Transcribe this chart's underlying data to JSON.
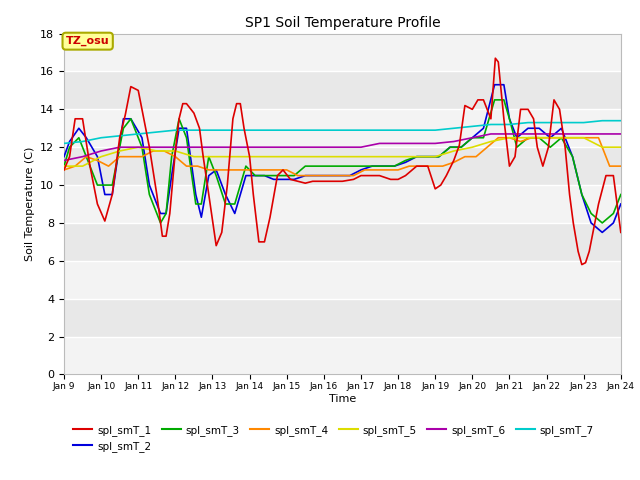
{
  "title": "SP1 Soil Temperature Profile",
  "xlabel": "Time",
  "ylabel": "Soil Temperature (C)",
  "ylim": [
    0,
    18
  ],
  "yticks": [
    0,
    2,
    4,
    6,
    8,
    10,
    12,
    14,
    16,
    18
  ],
  "tz_label": "TZ_osu",
  "xtick_labels": [
    "Jan 9",
    "Jan 10",
    "Jan 11",
    "Jan 12",
    "Jan 13",
    "Jan 14",
    "Jan 15",
    "Jan 16",
    "Jan 17",
    "Jan 18",
    "Jan 19",
    "Jan 20",
    "Jan 21",
    "Jan 22",
    "Jan 23",
    "Jan 24"
  ],
  "series_names": [
    "spl_smT_1",
    "spl_smT_2",
    "spl_smT_3",
    "spl_smT_4",
    "spl_smT_5",
    "spl_smT_6",
    "spl_smT_7"
  ],
  "series_colors": [
    "#dd0000",
    "#0000dd",
    "#00aa00",
    "#ff8800",
    "#dddd00",
    "#aa00aa",
    "#00cccc"
  ],
  "background_color": "#ffffff",
  "plot_bg_color": "#e8e8e8",
  "grid_color": "#ffffff",
  "spl_smT_1_x": [
    9.0,
    9.15,
    9.3,
    9.5,
    9.7,
    9.9,
    10.1,
    10.3,
    10.5,
    10.65,
    10.8,
    11.0,
    11.15,
    11.3,
    11.5,
    11.65,
    11.75,
    11.85,
    12.0,
    12.1,
    12.2,
    12.3,
    12.5,
    12.65,
    12.75,
    12.9,
    13.1,
    13.25,
    13.4,
    13.55,
    13.65,
    13.75,
    13.85,
    14.0,
    14.1,
    14.25,
    14.4,
    14.55,
    14.75,
    14.9,
    15.1,
    15.3,
    15.5,
    15.7,
    16.0,
    16.2,
    16.5,
    16.8,
    17.0,
    17.2,
    17.5,
    17.8,
    18.0,
    18.2,
    18.5,
    18.8,
    19.0,
    19.15,
    19.3,
    19.5,
    19.65,
    19.8,
    20.0,
    20.15,
    20.3,
    20.5,
    20.62,
    20.7,
    20.85,
    21.0,
    21.15,
    21.3,
    21.5,
    21.65,
    21.75,
    21.9,
    22.05,
    22.2,
    22.35,
    22.5,
    22.62,
    22.72,
    22.85,
    22.95,
    23.05,
    23.15,
    23.25,
    23.4,
    23.6,
    23.8,
    24.0
  ],
  "spl_smT_1_y": [
    10.8,
    11.5,
    13.5,
    13.5,
    11.0,
    9.0,
    8.1,
    9.5,
    12.5,
    13.7,
    15.2,
    15.0,
    13.5,
    12.0,
    9.5,
    7.3,
    7.3,
    8.5,
    11.8,
    13.5,
    14.3,
    14.3,
    13.8,
    13.0,
    11.5,
    9.5,
    6.8,
    7.5,
    10.0,
    13.5,
    14.3,
    14.3,
    13.0,
    11.5,
    9.5,
    7.0,
    7.0,
    8.3,
    10.5,
    10.8,
    10.3,
    10.2,
    10.1,
    10.2,
    10.2,
    10.2,
    10.2,
    10.3,
    10.5,
    10.5,
    10.5,
    10.3,
    10.3,
    10.5,
    11.0,
    11.0,
    9.8,
    10.0,
    10.5,
    11.3,
    12.1,
    14.2,
    14.0,
    14.5,
    14.5,
    13.5,
    16.7,
    16.5,
    13.5,
    11.0,
    11.5,
    14.0,
    14.0,
    13.5,
    12.0,
    11.0,
    12.0,
    14.5,
    14.0,
    12.0,
    9.5,
    8.0,
    6.5,
    5.8,
    5.9,
    6.5,
    7.5,
    9.0,
    10.5,
    10.5,
    7.5
  ],
  "spl_smT_2_x": [
    9.0,
    9.15,
    9.4,
    9.6,
    9.9,
    10.1,
    10.3,
    10.6,
    10.8,
    11.1,
    11.3,
    11.6,
    11.75,
    11.9,
    12.1,
    12.3,
    12.55,
    12.7,
    12.9,
    13.1,
    13.35,
    13.6,
    13.9,
    14.15,
    14.4,
    14.65,
    14.9,
    15.2,
    15.5,
    15.8,
    16.1,
    16.4,
    16.7,
    17.0,
    17.3,
    17.6,
    17.9,
    18.2,
    18.5,
    18.8,
    19.1,
    19.4,
    19.7,
    20.0,
    20.3,
    20.6,
    20.85,
    21.0,
    21.2,
    21.5,
    21.8,
    22.1,
    22.4,
    22.7,
    22.95,
    23.2,
    23.5,
    23.8,
    24.0
  ],
  "spl_smT_2_y": [
    11.5,
    12.3,
    13.0,
    12.5,
    11.5,
    9.5,
    9.5,
    13.5,
    13.5,
    12.5,
    10.0,
    8.5,
    8.5,
    10.5,
    13.0,
    13.0,
    9.5,
    8.3,
    10.5,
    10.8,
    9.5,
    8.5,
    10.5,
    10.5,
    10.5,
    10.3,
    10.3,
    10.3,
    10.5,
    10.5,
    10.5,
    10.5,
    10.5,
    10.8,
    11.0,
    11.0,
    11.0,
    11.2,
    11.5,
    11.5,
    11.5,
    12.0,
    12.0,
    12.5,
    13.0,
    15.3,
    15.3,
    13.5,
    12.5,
    13.0,
    13.0,
    12.5,
    13.0,
    11.5,
    9.5,
    8.0,
    7.5,
    8.0,
    9.0
  ],
  "spl_smT_3_x": [
    9.0,
    9.15,
    9.4,
    9.6,
    9.9,
    10.1,
    10.3,
    10.6,
    10.8,
    11.1,
    11.3,
    11.6,
    11.75,
    11.9,
    12.1,
    12.3,
    12.55,
    12.7,
    12.9,
    13.1,
    13.35,
    13.6,
    13.9,
    14.15,
    14.4,
    14.65,
    14.9,
    15.2,
    15.5,
    15.8,
    16.1,
    16.4,
    16.7,
    17.0,
    17.3,
    17.6,
    17.9,
    18.2,
    18.5,
    18.8,
    19.1,
    19.4,
    19.7,
    20.0,
    20.3,
    20.6,
    20.85,
    21.0,
    21.2,
    21.5,
    21.8,
    22.1,
    22.4,
    22.7,
    22.95,
    23.2,
    23.5,
    23.8,
    24.0
  ],
  "spl_smT_3_y": [
    11.0,
    12.0,
    12.5,
    11.5,
    10.0,
    10.0,
    10.0,
    13.0,
    13.5,
    12.0,
    9.5,
    8.0,
    8.5,
    11.5,
    13.5,
    12.5,
    9.0,
    9.0,
    11.5,
    10.5,
    9.0,
    9.0,
    11.0,
    10.5,
    10.5,
    10.5,
    10.5,
    10.5,
    11.0,
    11.0,
    11.0,
    11.0,
    11.0,
    11.0,
    11.0,
    11.0,
    11.0,
    11.3,
    11.5,
    11.5,
    11.5,
    12.0,
    12.0,
    12.5,
    12.5,
    14.5,
    14.5,
    13.5,
    12.0,
    12.5,
    12.5,
    12.0,
    12.5,
    11.5,
    9.5,
    8.5,
    8.0,
    8.5,
    9.5
  ],
  "spl_smT_4_x": [
    9.0,
    9.3,
    9.6,
    9.9,
    10.2,
    10.5,
    10.8,
    11.1,
    11.4,
    11.7,
    12.0,
    12.3,
    12.6,
    12.9,
    13.2,
    13.5,
    13.8,
    14.1,
    14.4,
    14.7,
    15.0,
    15.3,
    15.6,
    15.9,
    16.2,
    16.5,
    16.8,
    17.1,
    17.4,
    17.7,
    18.0,
    18.3,
    18.6,
    18.9,
    19.2,
    19.5,
    19.8,
    20.1,
    20.4,
    20.7,
    21.0,
    21.3,
    21.6,
    21.9,
    22.2,
    22.5,
    22.8,
    23.1,
    23.4,
    23.7,
    24.0
  ],
  "spl_smT_4_y": [
    10.8,
    11.0,
    11.5,
    11.3,
    11.0,
    11.5,
    11.5,
    11.5,
    11.8,
    11.8,
    11.5,
    11.0,
    11.0,
    10.8,
    10.8,
    10.8,
    10.8,
    10.8,
    10.8,
    10.8,
    10.8,
    10.5,
    10.5,
    10.5,
    10.5,
    10.5,
    10.5,
    10.8,
    10.8,
    10.8,
    10.8,
    11.0,
    11.0,
    11.0,
    11.0,
    11.2,
    11.5,
    11.5,
    12.0,
    12.5,
    12.5,
    12.3,
    12.5,
    12.5,
    12.5,
    12.5,
    12.5,
    12.5,
    12.5,
    11.0,
    11.0
  ],
  "spl_smT_5_x": [
    9.0,
    9.5,
    10.0,
    10.5,
    11.0,
    11.5,
    12.0,
    12.5,
    13.0,
    13.5,
    14.0,
    14.5,
    15.0,
    15.5,
    16.0,
    16.5,
    17.0,
    17.5,
    18.0,
    18.5,
    19.0,
    19.5,
    20.0,
    20.5,
    21.0,
    21.5,
    22.0,
    22.5,
    23.0,
    23.5,
    24.0
  ],
  "spl_smT_5_y": [
    11.0,
    11.0,
    11.5,
    11.8,
    12.0,
    11.8,
    11.8,
    11.5,
    11.5,
    11.5,
    11.5,
    11.5,
    11.5,
    11.5,
    11.5,
    11.5,
    11.5,
    11.5,
    11.5,
    11.5,
    11.5,
    11.8,
    12.0,
    12.3,
    12.5,
    12.5,
    12.5,
    12.5,
    12.5,
    12.0,
    12.0
  ],
  "spl_smT_6_x": [
    9.0,
    9.5,
    10.0,
    10.5,
    11.0,
    11.5,
    12.0,
    12.5,
    13.0,
    13.5,
    14.0,
    14.5,
    15.0,
    15.5,
    16.0,
    16.5,
    17.0,
    17.5,
    18.0,
    18.5,
    19.0,
    19.5,
    20.0,
    20.5,
    21.0,
    21.5,
    22.0,
    22.5,
    23.0,
    23.5,
    24.0
  ],
  "spl_smT_6_y": [
    11.3,
    11.5,
    11.8,
    12.0,
    12.0,
    12.0,
    12.0,
    12.0,
    12.0,
    12.0,
    12.0,
    12.0,
    12.0,
    12.0,
    12.0,
    12.0,
    12.0,
    12.2,
    12.2,
    12.2,
    12.2,
    12.3,
    12.5,
    12.7,
    12.7,
    12.7,
    12.7,
    12.7,
    12.7,
    12.7,
    12.7
  ],
  "spl_smT_7_x": [
    9.0,
    9.5,
    10.0,
    10.5,
    11.0,
    11.5,
    12.0,
    12.5,
    13.0,
    13.5,
    14.0,
    14.5,
    15.0,
    15.5,
    16.0,
    16.5,
    17.0,
    17.5,
    18.0,
    18.5,
    19.0,
    19.5,
    20.0,
    20.5,
    21.0,
    21.5,
    22.0,
    22.5,
    23.0,
    23.5,
    24.0
  ],
  "spl_smT_7_y": [
    12.2,
    12.3,
    12.5,
    12.6,
    12.7,
    12.8,
    12.9,
    12.9,
    12.9,
    12.9,
    12.9,
    12.9,
    12.9,
    12.9,
    12.9,
    12.9,
    12.9,
    12.9,
    12.9,
    12.9,
    12.9,
    13.0,
    13.1,
    13.2,
    13.2,
    13.3,
    13.3,
    13.3,
    13.3,
    13.4,
    13.4
  ]
}
